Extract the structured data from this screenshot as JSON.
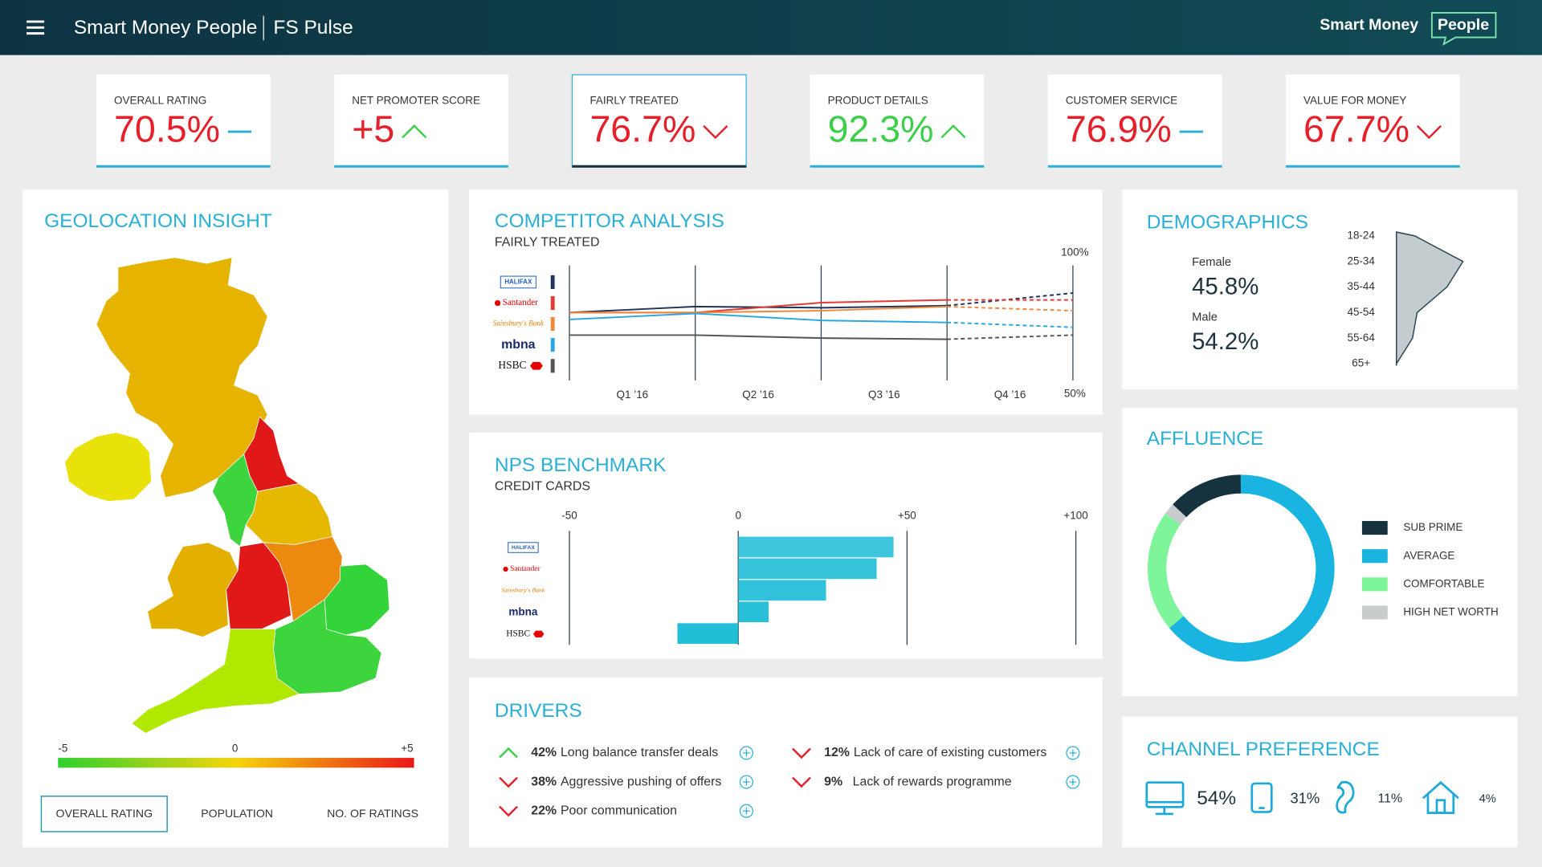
{
  "header": {
    "title": "Smart Money People",
    "product": "FS Pulse",
    "logo_left": "Smart Money",
    "logo_right": "People"
  },
  "trend_colors": {
    "up": "#3dcf4a",
    "down": "#e5202a",
    "flat": "#2ab0d6"
  },
  "kpis": [
    {
      "label": "OVERALL RATING",
      "value": "70.5%",
      "trend": "flat",
      "color": "#e5202a"
    },
    {
      "label": "NET PROMOTER SCORE",
      "value": "+5",
      "trend": "up",
      "color": "#e5202a"
    },
    {
      "label": "FAIRLY TREATED",
      "value": "76.7%",
      "trend": "down",
      "color": "#e5202a",
      "selected": true
    },
    {
      "label": "PRODUCT DETAILS",
      "value": "92.3%",
      "trend": "up",
      "color": "#3dcf4a"
    },
    {
      "label": "CUSTOMER SERVICE",
      "value": "76.9%",
      "trend": "flat",
      "color": "#e5202a"
    },
    {
      "label": "VALUE FOR MONEY",
      "value": "67.7%",
      "trend": "down",
      "color": "#e5202a"
    }
  ],
  "geolocation": {
    "title": "GEOLOCATION INSIGHT",
    "scale_labels": [
      "-5",
      "0",
      "+5"
    ],
    "scale_colors": [
      "#2ed12e",
      "#f5d40a",
      "#e81818"
    ],
    "tabs": [
      "OVERALL RATING",
      "POPULATION",
      "NO. OF RATINGS"
    ],
    "selected_tab": 0
  },
  "competitor": {
    "type": "line",
    "title": "COMPETITOR ANALYSIS",
    "subtitle": "FAIRLY TREATED",
    "quarters": [
      "Q1 ’16",
      "Q2 ’16",
      "Q3 ’16",
      "Q4 ’16"
    ],
    "x": [
      0,
      1,
      2,
      3,
      4
    ],
    "xlim": [
      0,
      4
    ],
    "ylim": [
      50,
      100
    ],
    "yticks": [
      {
        "value": 100,
        "label": "100%"
      },
      {
        "value": 50,
        "label": "50%"
      }
    ],
    "forecast_from": 3,
    "series": [
      {
        "name": "HALIFAX",
        "color": "#22345a",
        "values": [
          79.5,
          82.1,
          81.6,
          82.5,
          88.0
        ]
      },
      {
        "name": "Santander",
        "color": "#e53935",
        "values": [
          79.5,
          79.5,
          83.8,
          85.0,
          85.0
        ]
      },
      {
        "name": "Sainsbury's Bank",
        "color": "#f0883a",
        "values": [
          79.5,
          79.5,
          80.3,
          82.1,
          80.3
        ]
      },
      {
        "name": "mbna",
        "color": "#2aa7e0",
        "values": [
          76.5,
          79.1,
          76.1,
          75.2,
          73.1
        ]
      },
      {
        "name": "HSBC",
        "color": "#555555",
        "values": [
          69.7,
          69.7,
          68.4,
          67.9,
          69.7
        ]
      }
    ]
  },
  "nps": {
    "type": "bar",
    "title": "NPS BENCHMARK",
    "subtitle": "CREDIT CARDS",
    "categories": [
      "HALIFAX",
      "Santander",
      "Sainsbury's Bank",
      "mbna",
      "HSBC"
    ],
    "values": [
      46,
      41,
      26,
      9,
      -18
    ],
    "color": "#1bbcd6",
    "xlim": [
      -50,
      100
    ],
    "xticks": [
      -50,
      0,
      {
        "value": 50,
        "label": "+50"
      },
      {
        "value": 100,
        "label": "+100"
      }
    ]
  },
  "drivers": {
    "title": "DRIVERS",
    "columns": [
      [
        {
          "percent": "42%",
          "text": "Long balance transfer deals",
          "trend": "up"
        },
        {
          "percent": "38%",
          "text": "Aggressive pushing of offers",
          "trend": "down"
        },
        {
          "percent": "22%",
          "text": "Poor communication",
          "trend": "down"
        }
      ],
      [
        {
          "percent": "12%",
          "text": "Lack of care of existing customers",
          "trend": "down"
        },
        {
          "percent": "9%",
          "text": "Lack of rewards programme",
          "trend": "down"
        }
      ]
    ]
  },
  "demographics": {
    "title": "DEMOGRAPHICS",
    "genders": [
      {
        "label": "Female",
        "value": "45.8%"
      },
      {
        "label": "Male",
        "value": "54.2%"
      }
    ],
    "age_chart": {
      "type": "area",
      "categories": [
        "18-24",
        "25-34",
        "35-44",
        "45-54",
        "55-64",
        "65+"
      ],
      "values": [
        8,
        29,
        22,
        9,
        7,
        0
      ],
      "xlim": [
        0,
        30
      ],
      "color": "#c5cccf"
    }
  },
  "affluence": {
    "type": "donut",
    "title": "AFFLUENCE",
    "start_angle": 313,
    "series": [
      {
        "name": "SUB PRIME",
        "color": "#16323f",
        "value": 13
      },
      {
        "name": "AVERAGE",
        "color": "#1ab4e0",
        "value": 64
      },
      {
        "name": "COMFORTABLE",
        "color": "#7ef59a",
        "value": 21
      },
      {
        "name": "HIGH NET WORTH",
        "color": "#c8cccc",
        "value": 2
      }
    ]
  },
  "channels": {
    "title": "CHANNEL PREFERENCE",
    "items": [
      {
        "value": "54%"
      },
      {
        "value": "31%"
      },
      {
        "value": "11%"
      },
      {
        "value": "4%"
      }
    ]
  }
}
